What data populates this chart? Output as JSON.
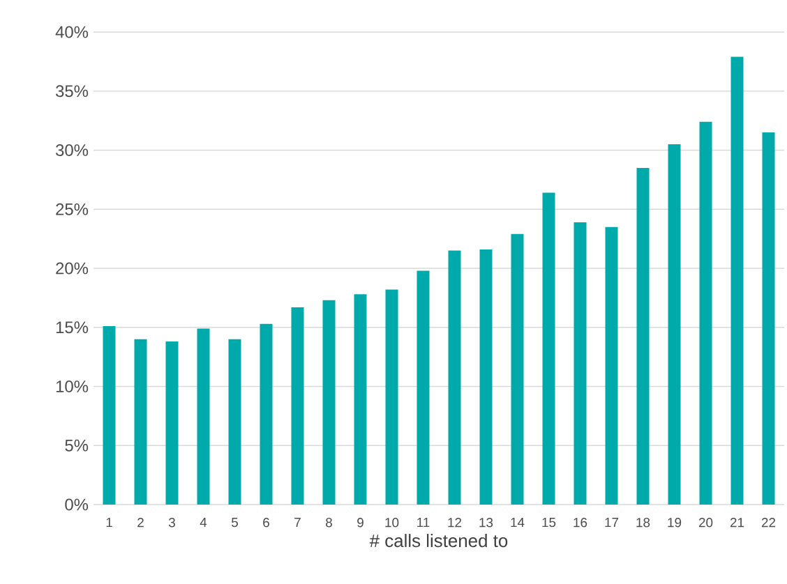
{
  "chart_data": {
    "type": "bar",
    "xlabel": "# calls listened to",
    "categories": [
      "1",
      "2",
      "3",
      "4",
      "5",
      "6",
      "7",
      "8",
      "9",
      "10",
      "11",
      "12",
      "13",
      "14",
      "15",
      "16",
      "17",
      "18",
      "19",
      "20",
      "21",
      "22"
    ],
    "values": [
      15.1,
      14.0,
      13.8,
      14.9,
      14.0,
      15.3,
      16.7,
      17.3,
      17.8,
      18.2,
      19.8,
      21.5,
      21.6,
      22.9,
      26.4,
      23.9,
      23.5,
      28.5,
      30.5,
      32.4,
      37.9,
      31.5
    ],
    "color": "#00aaaa",
    "ylim": [
      0,
      40
    ],
    "yticks": [
      {
        "value": 0,
        "label": "0%"
      },
      {
        "value": 5,
        "label": "5%"
      },
      {
        "value": 10,
        "label": "10%"
      },
      {
        "value": 15,
        "label": "15%"
      },
      {
        "value": 20,
        "label": "20%"
      },
      {
        "value": 25,
        "label": "25%"
      },
      {
        "value": 30,
        "label": "30%"
      },
      {
        "value": 35,
        "label": "35%"
      },
      {
        "value": 40,
        "label": "40%"
      }
    ],
    "grid": "y"
  }
}
